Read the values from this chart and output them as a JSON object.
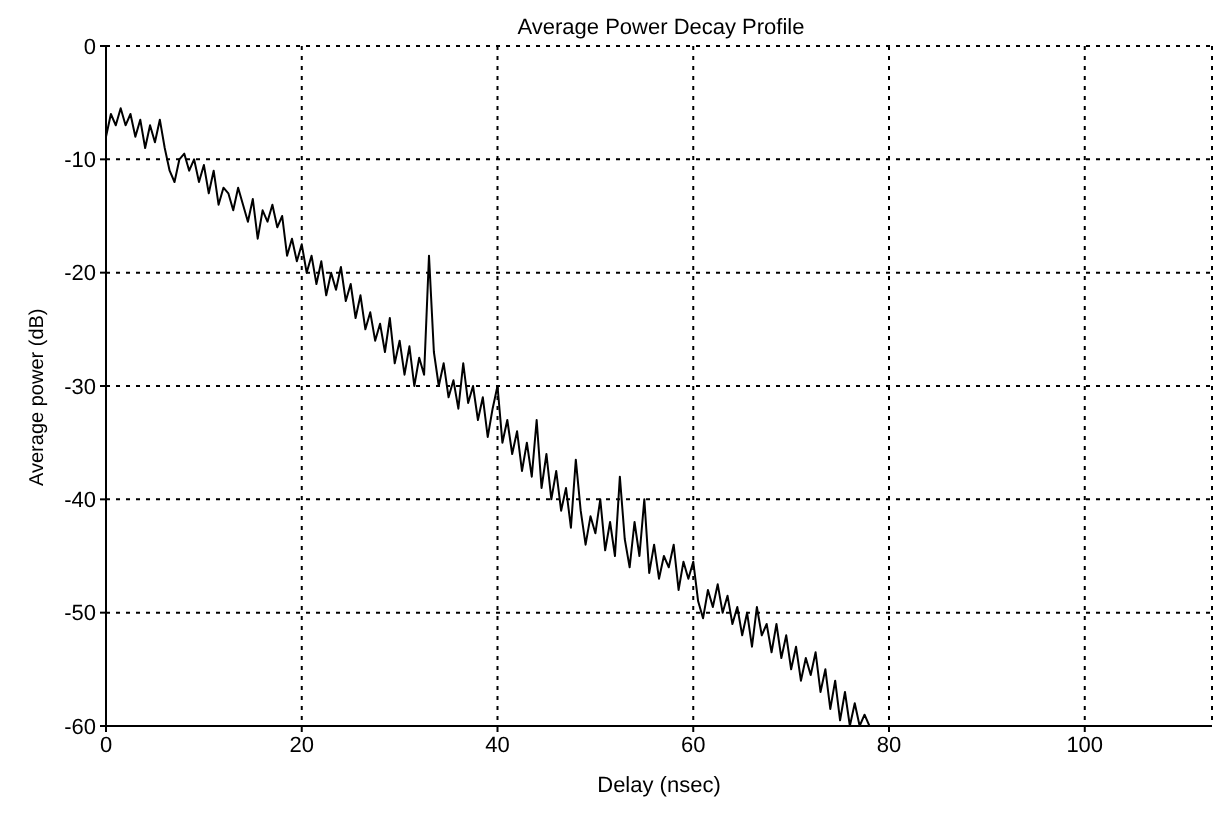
{
  "chart_data": {
    "type": "line",
    "title": "Average Power Decay Profile",
    "xlabel": "Delay (nsec)",
    "ylabel": "Average power (dB)",
    "xlim": [
      0,
      113
    ],
    "xticks": [
      0,
      20,
      40,
      60,
      80,
      100
    ],
    "ylim": [
      -60,
      0
    ],
    "yticks": [
      -60,
      -50,
      -40,
      -30,
      -20,
      -10,
      0
    ],
    "grid": true,
    "series": [
      {
        "color": "#000000",
        "x": [
          0,
          0.5,
          1,
          1.5,
          2,
          2.5,
          3,
          3.5,
          4,
          4.5,
          5,
          5.5,
          6,
          6.5,
          7,
          7.5,
          8,
          8.5,
          9,
          9.5,
          10,
          10.5,
          11,
          11.5,
          12,
          12.5,
          13,
          13.5,
          14,
          14.5,
          15,
          15.5,
          16,
          16.5,
          17,
          17.5,
          18,
          18.5,
          19,
          19.5,
          20,
          20.5,
          21,
          21.5,
          22,
          22.5,
          23,
          23.5,
          24,
          24.5,
          25,
          25.5,
          26,
          26.5,
          27,
          27.5,
          28,
          28.5,
          29,
          29.5,
          30,
          30.5,
          31,
          31.5,
          32,
          32.5,
          33,
          33.5,
          34,
          34.5,
          35,
          35.5,
          36,
          36.5,
          37,
          37.5,
          38,
          38.5,
          39,
          39.5,
          40,
          40.5,
          41,
          41.5,
          42,
          42.5,
          43,
          43.5,
          44,
          44.5,
          45,
          45.5,
          46,
          46.5,
          47,
          47.5,
          48,
          48.5,
          49,
          49.5,
          50,
          50.5,
          51,
          51.5,
          52,
          52.5,
          53,
          53.5,
          54,
          54.5,
          55,
          55.5,
          56,
          56.5,
          57,
          57.5,
          58,
          58.5,
          59,
          59.5,
          60,
          60.5,
          61,
          61.5,
          62,
          62.5,
          63,
          63.5,
          64,
          64.5,
          65,
          65.5,
          66,
          66.5,
          67,
          67.5,
          68,
          68.5,
          69,
          69.5,
          70,
          70.5,
          71,
          71.5,
          72,
          72.5,
          73,
          73.5,
          74,
          74.5,
          75,
          75.5,
          76,
          76.5,
          77,
          77.5,
          78,
          79
        ],
        "values": [
          -8,
          -6,
          -7,
          -5.5,
          -7,
          -6,
          -8,
          -6.5,
          -9,
          -7,
          -8.5,
          -6.5,
          -9,
          -11,
          -12,
          -10,
          -9.5,
          -11,
          -10,
          -12,
          -10.5,
          -13,
          -11,
          -14,
          -12.5,
          -13,
          -14.5,
          -12.5,
          -14,
          -15.5,
          -13.5,
          -17,
          -14.5,
          -15.5,
          -14,
          -16,
          -15,
          -18.5,
          -17,
          -19,
          -17.5,
          -20,
          -18.5,
          -21,
          -19,
          -22,
          -20,
          -21.5,
          -19.5,
          -22.5,
          -21,
          -24,
          -22,
          -25,
          -23.5,
          -26,
          -24.5,
          -27,
          -24,
          -28,
          -26,
          -29,
          -26.5,
          -30,
          -27.5,
          -29,
          -18.5,
          -27,
          -30,
          -28,
          -31,
          -29.5,
          -32,
          -28,
          -31.5,
          -30,
          -33,
          -31,
          -34.5,
          -32,
          -30,
          -35,
          -33,
          -36,
          -34,
          -37.5,
          -35,
          -38,
          -33,
          -39,
          -36,
          -40,
          -37.5,
          -41,
          -39,
          -42.5,
          -36.5,
          -41,
          -44,
          -41.5,
          -43,
          -40,
          -44.5,
          -42,
          -45,
          -38,
          -43.5,
          -46,
          -42,
          -45,
          -40,
          -46.5,
          -44,
          -47,
          -45,
          -46,
          -44,
          -48,
          -45.5,
          -47,
          -45.5,
          -49,
          -50.5,
          -48,
          -49.5,
          -47.5,
          -50,
          -48.5,
          -51,
          -49.5,
          -52,
          -50,
          -53,
          -49.5,
          -52,
          -51,
          -53.5,
          -51,
          -54,
          -52,
          -55,
          -53,
          -56,
          -54,
          -55.5,
          -53.5,
          -57,
          -55,
          -58.5,
          -56,
          -59.5,
          -57,
          -60,
          -58,
          -60,
          -59,
          -60,
          -60
        ]
      }
    ]
  }
}
